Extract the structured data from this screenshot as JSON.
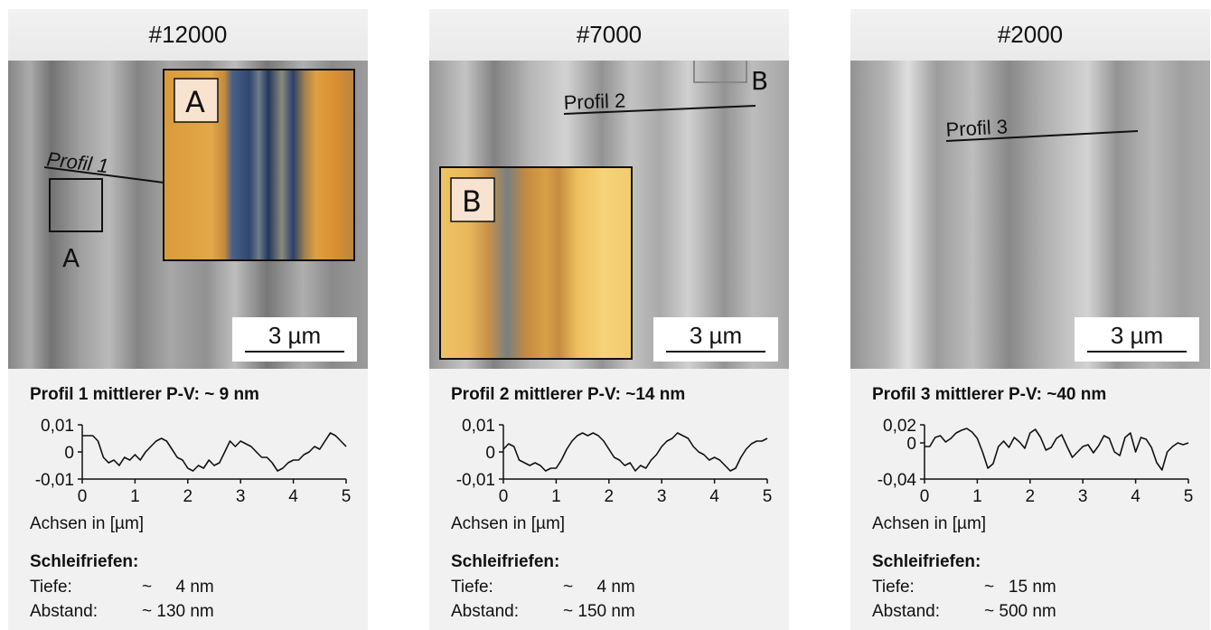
{
  "panels": [
    {
      "title": "#12000",
      "profile_label": "Profil 1",
      "region_label": "A",
      "inset_label": "A",
      "scale": "3 µm",
      "pv": "Profil 1 mittlerer P-V: ~ 9 nm",
      "axis_title": "Achsen in [µm]",
      "grooves_title": "Schleifriefen:",
      "depth_label": "Tiefe:",
      "depth_value": "~     4 nm",
      "spacing_label": "Abstand:",
      "spacing_value": "~ 130 nm",
      "inset_palette": "orange-blue"
    },
    {
      "title": "#7000",
      "profile_label": "Profil 2",
      "region_label": "B",
      "inset_label": "B",
      "scale": "3 µm",
      "pv": "Profil 2 mittlerer P-V: ~14 nm",
      "axis_title": "Achsen in [µm]",
      "grooves_title": "Schleifriefen:",
      "depth_label": "Tiefe:",
      "depth_value": "~     4 nm",
      "spacing_label": "Abstand:",
      "spacing_value": "~ 150 nm",
      "inset_palette": "orange-blue"
    },
    {
      "title": "#2000",
      "profile_label": "Profil 3",
      "scale": "3 µm",
      "pv": "Profil 3 mittlerer P-V: ~40 nm",
      "axis_title": "Achsen in [µm]",
      "grooves_title": "Schleifriefen:",
      "depth_label": "Tiefe:",
      "depth_value": "~   15 nm",
      "spacing_label": "Abstand:",
      "spacing_value": "~ 500 nm"
    }
  ],
  "chart_data": [
    {
      "type": "line",
      "x": [
        0,
        0.2,
        0.3,
        0.4,
        0.5,
        0.6,
        0.7,
        0.8,
        0.9,
        1.0,
        1.1,
        1.2,
        1.3,
        1.4,
        1.5,
        1.6,
        1.7,
        1.8,
        1.9,
        2.0,
        2.1,
        2.2,
        2.3,
        2.4,
        2.5,
        2.6,
        2.7,
        2.8,
        2.9,
        3.0,
        3.1,
        3.2,
        3.3,
        3.4,
        3.5,
        3.6,
        3.7,
        3.8,
        3.9,
        4.0,
        4.1,
        4.2,
        4.3,
        4.4,
        4.5,
        4.6,
        4.7,
        4.8,
        4.9,
        5.0
      ],
      "values": [
        0.006,
        0.006,
        0.004,
        -0.002,
        -0.004,
        -0.003,
        -0.005,
        -0.002,
        -0.003,
        -0.001,
        -0.003,
        0.0,
        0.002,
        0.004,
        0.005,
        0.004,
        0.001,
        -0.002,
        -0.003,
        -0.006,
        -0.007,
        -0.005,
        -0.006,
        -0.003,
        -0.005,
        -0.004,
        0.0,
        0.004,
        0.002,
        0.004,
        0.003,
        0.002,
        0.0,
        -0.002,
        -0.002,
        -0.004,
        -0.007,
        -0.006,
        -0.004,
        -0.003,
        -0.003,
        -0.001,
        0.0,
        0.002,
        0.001,
        0.004,
        0.007,
        0.006,
        0.004,
        0.002
      ],
      "xlim": [
        0,
        5
      ],
      "ylim": [
        -0.01,
        0.01
      ],
      "yticks": [
        "0,01",
        "0",
        "-0,01"
      ],
      "xticks": [
        "0",
        "1",
        "2",
        "3",
        "4",
        "5"
      ],
      "xlabel": "Achsen in [µm]"
    },
    {
      "type": "line",
      "x": [
        0,
        0.1,
        0.2,
        0.3,
        0.4,
        0.5,
        0.6,
        0.7,
        0.8,
        0.9,
        1.0,
        1.1,
        1.2,
        1.3,
        1.4,
        1.5,
        1.6,
        1.7,
        1.8,
        1.9,
        2.0,
        2.1,
        2.2,
        2.3,
        2.4,
        2.5,
        2.6,
        2.7,
        2.8,
        2.9,
        3.0,
        3.1,
        3.2,
        3.3,
        3.4,
        3.5,
        3.6,
        3.7,
        3.8,
        3.9,
        4.0,
        4.1,
        4.2,
        4.3,
        4.4,
        4.5,
        4.6,
        4.7,
        4.8,
        4.9,
        5.0
      ],
      "values": [
        0.001,
        0.003,
        0.002,
        -0.003,
        -0.004,
        -0.005,
        -0.004,
        -0.005,
        -0.007,
        -0.006,
        -0.006,
        -0.003,
        0.001,
        0.004,
        0.006,
        0.007,
        0.006,
        0.007,
        0.006,
        0.004,
        0.001,
        -0.002,
        -0.003,
        -0.005,
        -0.004,
        -0.007,
        -0.005,
        -0.006,
        -0.003,
        -0.001,
        0.002,
        0.004,
        0.005,
        0.007,
        0.006,
        0.005,
        0.002,
        0.0,
        -0.001,
        -0.003,
        -0.002,
        -0.003,
        -0.005,
        -0.007,
        -0.006,
        -0.002,
        0.001,
        0.003,
        0.004,
        0.004,
        0.005
      ],
      "xlim": [
        0,
        5
      ],
      "ylim": [
        -0.01,
        0.01
      ],
      "yticks": [
        "0,01",
        "0",
        "-0,01"
      ],
      "xticks": [
        "0",
        "1",
        "2",
        "3",
        "4",
        "5"
      ],
      "xlabel": "Achsen in [µm]"
    },
    {
      "type": "line",
      "x": [
        0,
        0.1,
        0.2,
        0.3,
        0.4,
        0.5,
        0.6,
        0.7,
        0.8,
        0.9,
        1.0,
        1.1,
        1.2,
        1.3,
        1.4,
        1.5,
        1.6,
        1.7,
        1.8,
        1.9,
        2.0,
        2.1,
        2.2,
        2.3,
        2.4,
        2.5,
        2.6,
        2.7,
        2.8,
        2.9,
        3.0,
        3.1,
        3.2,
        3.3,
        3.4,
        3.5,
        3.6,
        3.7,
        3.8,
        3.9,
        4.0,
        4.1,
        4.2,
        4.3,
        4.4,
        4.5,
        4.6,
        4.7,
        4.8,
        4.9,
        5.0
      ],
      "values": [
        -0.004,
        -0.004,
        0.006,
        0.008,
        0.001,
        0.005,
        0.011,
        0.014,
        0.016,
        0.012,
        0.005,
        -0.01,
        -0.028,
        -0.023,
        -0.004,
        0.002,
        -0.005,
        0.006,
        0.001,
        -0.006,
        0.011,
        0.015,
        0.006,
        -0.008,
        -0.005,
        0.005,
        0.009,
        -0.004,
        -0.016,
        -0.01,
        -0.004,
        -0.002,
        -0.011,
        -0.003,
        0.008,
        0.005,
        -0.01,
        -0.014,
        0.006,
        0.011,
        -0.01,
        0.006,
        0.004,
        -0.005,
        -0.022,
        -0.03,
        -0.01,
        -0.004,
        0.0,
        -0.002,
        0.0
      ],
      "xlim": [
        0,
        5
      ],
      "ylim": [
        -0.04,
        0.02
      ],
      "yticks": [
        "0,02",
        "0",
        "-0,04"
      ],
      "xticks": [
        "0",
        "1",
        "2",
        "3",
        "4",
        "5"
      ],
      "xlabel": "Achsen in [µm]"
    }
  ]
}
